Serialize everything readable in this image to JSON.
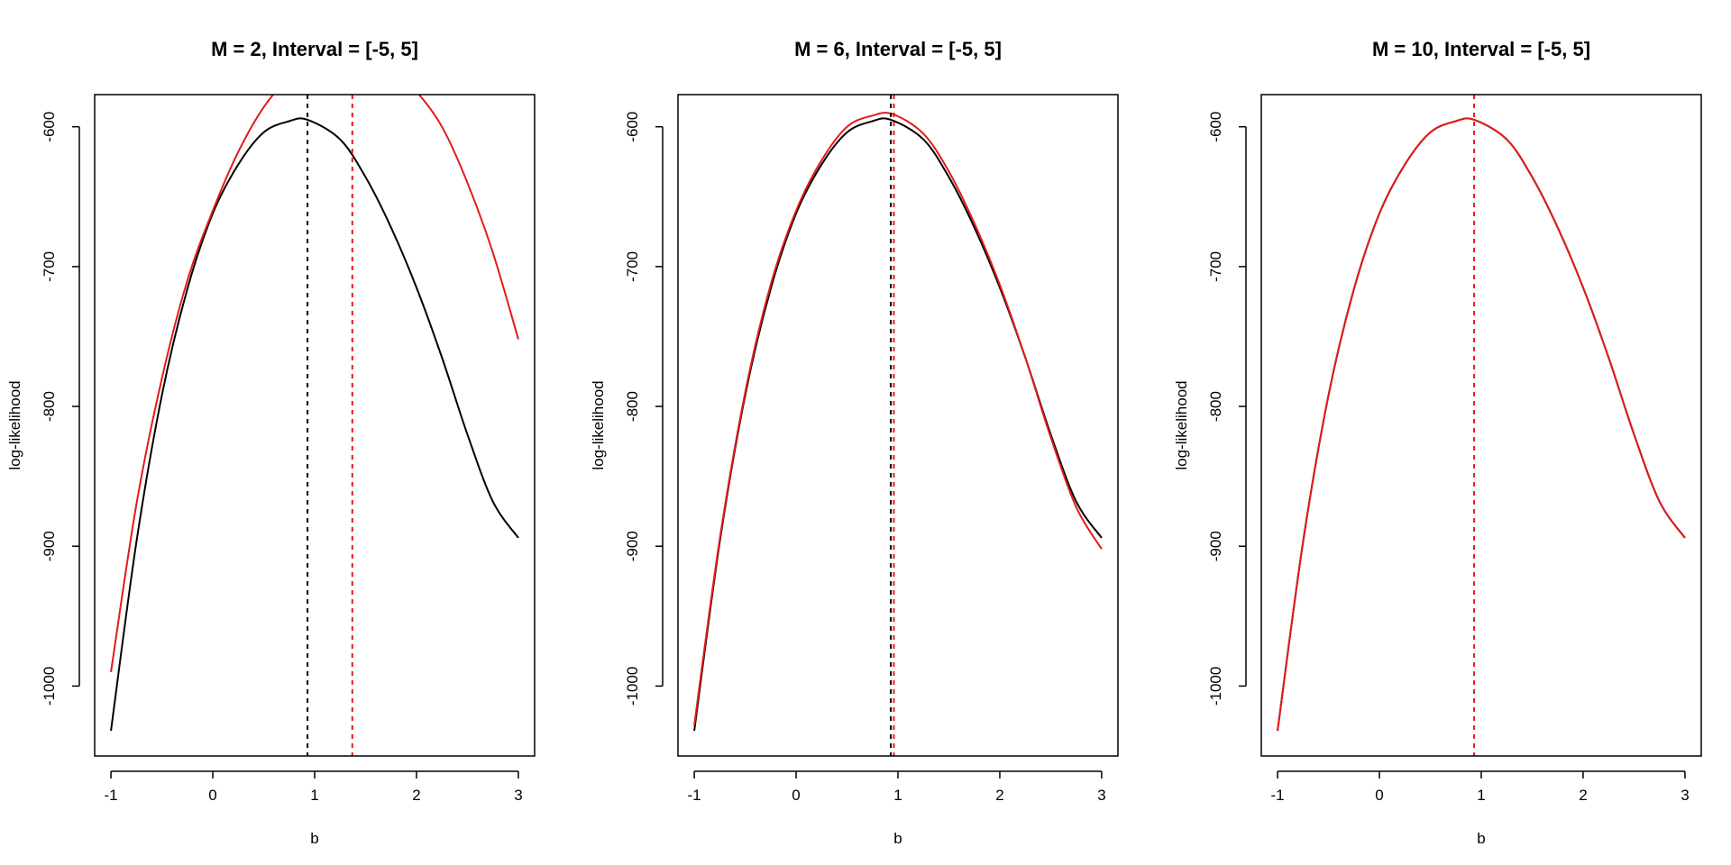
{
  "chart_data": [
    {
      "type": "line",
      "title": "M = 2,  Interval = [-5, 5]",
      "xlabel": "b",
      "ylabel": "log-likelihood",
      "xlim": [
        -1,
        3
      ],
      "ylim": [
        -1050,
        -577
      ],
      "xticks": [
        -1,
        0,
        1,
        2,
        3
      ],
      "yticks": [
        -1000,
        -900,
        -800,
        -700,
        -600
      ],
      "series": [
        {
          "color": "#000000",
          "x": [
            -1,
            -0.75,
            -0.5,
            -0.25,
            0,
            0.25,
            0.5,
            0.75,
            0.93,
            1.25,
            1.5,
            1.75,
            2,
            2.25,
            2.5,
            2.75,
            3
          ],
          "y": [
            -1032,
            -897,
            -792,
            -716,
            -662,
            -627,
            -604,
            -596,
            -595,
            -609,
            -636,
            -672,
            -715,
            -765,
            -820,
            -868,
            -894
          ]
        },
        {
          "color": "#e41a1c",
          "x": [
            -1,
            -0.75,
            -0.5,
            -0.25,
            0,
            0.25,
            0.5,
            0.75,
            1,
            1.25,
            1.5,
            1.75,
            2,
            2.25,
            2.5,
            2.75,
            3
          ],
          "y": [
            -990,
            -870,
            -780,
            -710,
            -660,
            -618,
            -586,
            -565,
            -553,
            -550,
            -553,
            -560,
            -575,
            -600,
            -640,
            -690,
            -752
          ]
        }
      ],
      "vlines": [
        {
          "x": 0.93,
          "color": "#000000",
          "style": "dashed"
        },
        {
          "x": 1.37,
          "color": "#e41a1c",
          "style": "dashed"
        }
      ]
    },
    {
      "type": "line",
      "title": "M = 6,  Interval = [-5, 5]",
      "xlabel": "b",
      "ylabel": "log-likelihood",
      "xlim": [
        -1,
        3
      ],
      "ylim": [
        -1050,
        -577
      ],
      "xticks": [
        -1,
        0,
        1,
        2,
        3
      ],
      "yticks": [
        -1000,
        -900,
        -800,
        -700,
        -600
      ],
      "series": [
        {
          "color": "#000000",
          "x": [
            -1,
            -0.75,
            -0.5,
            -0.25,
            0,
            0.25,
            0.5,
            0.75,
            0.93,
            1.25,
            1.5,
            1.75,
            2,
            2.25,
            2.5,
            2.75,
            3
          ],
          "y": [
            -1032,
            -897,
            -792,
            -716,
            -662,
            -627,
            -604,
            -596,
            -595,
            -609,
            -636,
            -672,
            -715,
            -765,
            -820,
            -868,
            -894
          ]
        },
        {
          "color": "#e41a1c",
          "x": [
            -1,
            -0.75,
            -0.5,
            -0.25,
            0,
            0.25,
            0.5,
            0.75,
            0.95,
            1.25,
            1.5,
            1.75,
            2,
            2.25,
            2.5,
            2.75,
            3
          ],
          "y": [
            -1028,
            -895,
            -790,
            -713,
            -660,
            -624,
            -600,
            -592,
            -591,
            -605,
            -632,
            -669,
            -713,
            -765,
            -822,
            -872,
            -902
          ]
        }
      ],
      "vlines": [
        {
          "x": 0.93,
          "color": "#000000",
          "style": "dashed"
        },
        {
          "x": 0.96,
          "color": "#e41a1c",
          "style": "dashed"
        }
      ]
    },
    {
      "type": "line",
      "title": "M = 10,  Interval = [-5, 5]",
      "xlabel": "b",
      "ylabel": "log-likelihood",
      "xlim": [
        -1,
        3
      ],
      "ylim": [
        -1050,
        -577
      ],
      "xticks": [
        -1,
        0,
        1,
        2,
        3
      ],
      "yticks": [
        -1000,
        -900,
        -800,
        -700,
        -600
      ],
      "series": [
        {
          "color": "#000000",
          "x": [
            -1,
            -0.75,
            -0.5,
            -0.25,
            0,
            0.25,
            0.5,
            0.75,
            0.93,
            1.25,
            1.5,
            1.75,
            2,
            2.25,
            2.5,
            2.75,
            3
          ],
          "y": [
            -1032,
            -897,
            -792,
            -716,
            -662,
            -627,
            -604,
            -596,
            -595,
            -609,
            -636,
            -672,
            -715,
            -765,
            -820,
            -868,
            -894
          ]
        },
        {
          "color": "#e41a1c",
          "x": [
            -1,
            -0.75,
            -0.5,
            -0.25,
            0,
            0.25,
            0.5,
            0.75,
            0.93,
            1.25,
            1.5,
            1.75,
            2,
            2.25,
            2.5,
            2.75,
            3
          ],
          "y": [
            -1032,
            -897,
            -792,
            -716,
            -662,
            -627,
            -604,
            -596,
            -595,
            -609,
            -636,
            -672,
            -715,
            -765,
            -820,
            -868,
            -894
          ]
        }
      ],
      "vlines": [
        {
          "x": 0.93,
          "color": "#e41a1c",
          "style": "dashed"
        }
      ]
    }
  ]
}
